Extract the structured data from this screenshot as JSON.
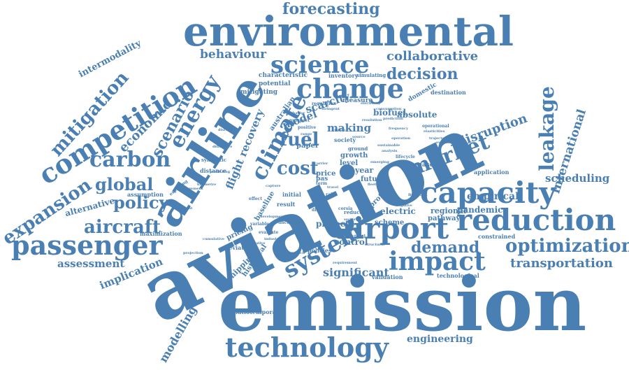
{
  "cloud": {
    "color": "#4a7fb3",
    "background": "#ffffff",
    "words": {
      "aviation": "aviation",
      "emission": "emission",
      "environmental": "environmental",
      "airline": "airline",
      "technology": "technology",
      "airport": "airport",
      "capacity": "capacity",
      "reduction": "reduction",
      "passenger": "passenger",
      "competition": "competition",
      "change": "change",
      "science": "science",
      "system": "system",
      "impact": "impact",
      "climate": "climate",
      "market": "market",
      "carbon": "carbon",
      "optimization": "optimization",
      "energy": "energy",
      "mitigation": "mitigation",
      "expansion": "expansion",
      "forecasting": "forecasting",
      "policy": "policy",
      "aircraft": "aircraft",
      "demand": "demand",
      "leakage": "leakage",
      "decision": "decision",
      "fuel": "fuel",
      "cost": "cost",
      "global": "global",
      "scenario": "scenario",
      "economic": "economic",
      "transportation": "transportation",
      "behaviour": "behaviour",
      "collaborative": "collaborative",
      "disruption": "disruption",
      "international": "international",
      "scheduling": "scheduling",
      "assessment": "assessment",
      "implication": "implication",
      "modelling": "modelling",
      "significant": "significant",
      "engineering": "engineering",
      "intermodality": "intermodality",
      "flight_recovery": "flight recovery",
      "model": "model",
      "scarcity": "scarcity",
      "making": "making",
      "empirical": "empirical",
      "pandemic": "pandemic",
      "alternative": "alternative",
      "shipping": "shipping",
      "historical": "historical",
      "control": "control",
      "biofuel": "biofuel",
      "absolute": "absolute",
      "project": "project",
      "electric": "electric",
      "scheme": "scheme",
      "growth": "growth",
      "year": "year",
      "future": "future",
      "regional": "regional",
      "pathway": "pathway",
      "profit": "profit",
      "paper": "paper",
      "price": "price",
      "level": "level",
      "pricing": "pricing",
      "baseline": "baseline",
      "australian": "australian",
      "characteristic": "characteristic",
      "potential": "potential",
      "mitigating": "mitigating",
      "inventory": "inventory",
      "simulating": "simulating",
      "measure": "measure",
      "domestic": "domestic",
      "destination": "destination",
      "increase": "increase",
      "application": "application",
      "constrained": "constrained",
      "technological": "technological",
      "validation": "validation",
      "spatiotemporal": "spatiotemporal",
      "maximization": "maximization",
      "assumption": "assumption",
      "alleviation": "alleviation",
      "distance": "distance",
      "synthetic": "synthetic",
      "society": "society",
      "ground": "ground",
      "result": "result",
      "initial": "initial",
      "reduce": "reduce",
      "sectoral": "sectoral",
      "policies": "policies",
      "regulation": "regulation",
      "positive": "positive",
      "prospect": "prospect",
      "consumption": "consumption",
      "operational": "operational",
      "elasticities": "elasticities",
      "trajectories": "trajectories",
      "evaluation": "evaluation",
      "frequency": "frequency",
      "network": "network",
      "negative": "negative",
      "lifecycle": "lifecycle",
      "corsia": "corsia",
      "uncertain": "uncertain",
      "sector": "sector",
      "direct": "direct",
      "variable": "variable",
      "evaluate": "evaluate",
      "effect": "effect",
      "exploring": "exploring",
      "equivalent": "equivalent",
      "management": "management",
      "cumulative": "cumulative",
      "predicting": "predicting",
      "kilometre": "kilometre",
      "difference": "difference",
      "disruptive": "disruptive",
      "requirement": "requirement",
      "source": "source",
      "term": "term",
      "rail": "rail",
      "pas": "pas",
      "world": "world",
      "electricity": "electricity",
      "stringent": "stringent",
      "prediction": "prediction",
      "behavior": "behavior",
      "fleet": "fleet",
      "analysis": "analysis",
      "industry": "industry",
      "related": "related",
      "speculative": "speculative",
      "projection": "projection",
      "approach": "approach",
      "sustainable": "sustainable",
      "operation": "operation",
      "region": "region",
      "structural": "structural",
      "range": "range",
      "development": "development",
      "carrier": "carrier",
      "emerging": "emerging",
      "travel": "travel",
      "capture": "capture",
      "resolution": "resolution"
    }
  }
}
